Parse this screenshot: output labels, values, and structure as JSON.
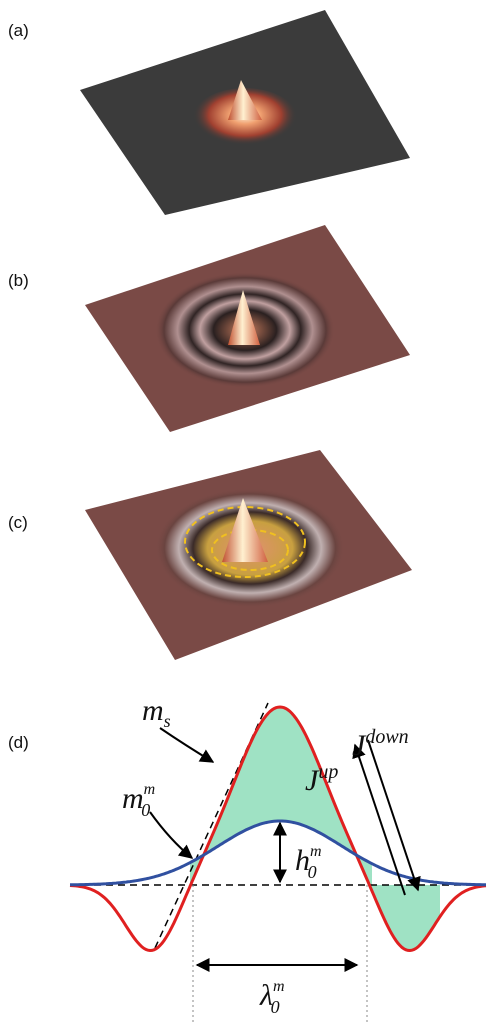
{
  "panels": {
    "a": "(a)",
    "b": "(b)",
    "c": "(c)",
    "d": "(d)"
  },
  "labels": {
    "m_s": {
      "base": "m",
      "sub": "s"
    },
    "m_0": {
      "base": "m",
      "sub": "0",
      "sup": "m"
    },
    "j_up": {
      "base": "J",
      "sup": "up"
    },
    "j_down": {
      "base": "J",
      "sup": "down"
    },
    "h_0": {
      "base": "h",
      "sub": "0",
      "sup": "m"
    },
    "lambda_0": {
      "base": "λ",
      "sub": "0",
      "sup": "m"
    }
  }
}
